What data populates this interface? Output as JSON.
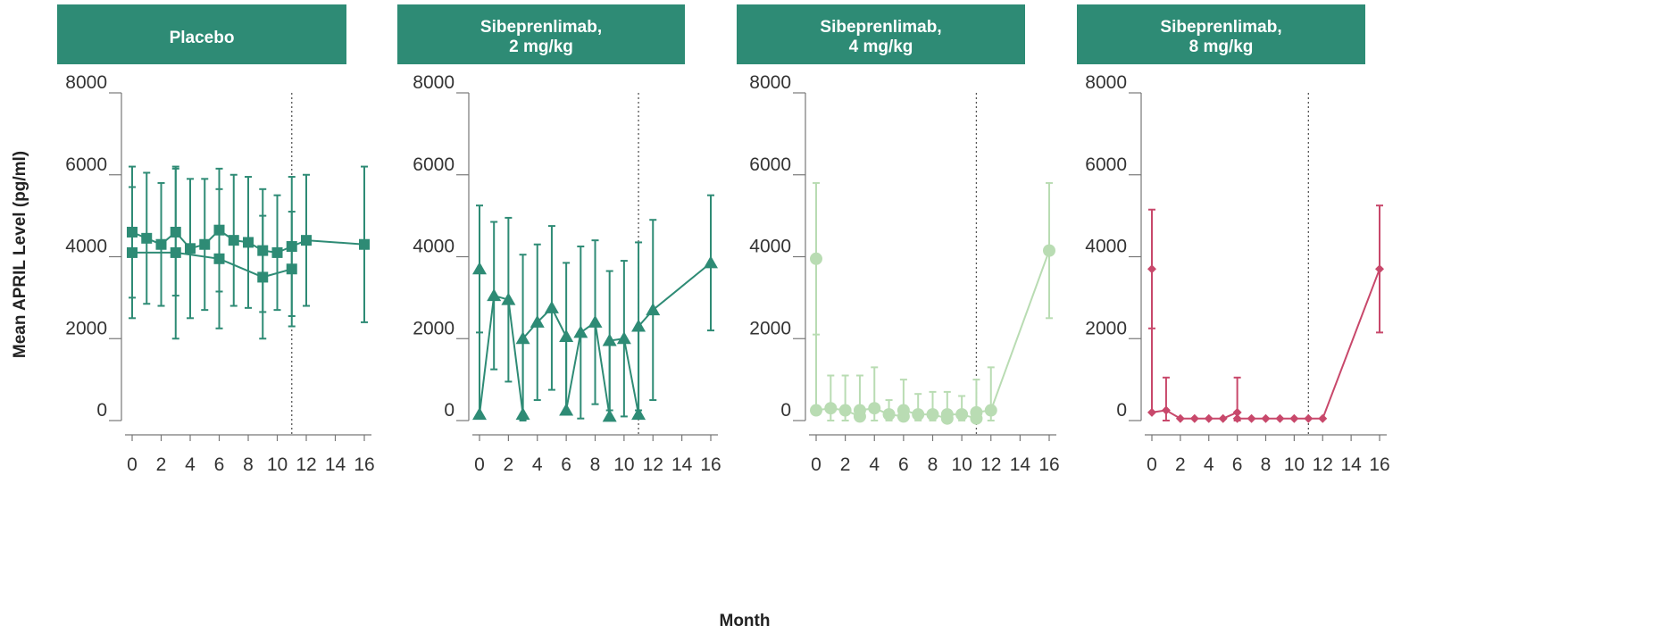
{
  "chart_data": {
    "type": "line",
    "ylabel": "Mean APRIL Level (pg/ml)",
    "xlabel": "Month",
    "ylim": [
      0,
      8000
    ],
    "yticks": [
      0,
      2000,
      4000,
      6000,
      8000
    ],
    "xlim": [
      0,
      16
    ],
    "xticks": [
      0,
      2,
      4,
      6,
      8,
      10,
      12,
      14,
      16
    ],
    "reference_line_x": 11,
    "header_color": "#2e8b75",
    "panels": [
      {
        "title_lines": [
          "Placebo"
        ],
        "marker": "square",
        "color": "#2e8b75",
        "series": [
          {
            "x": [
              0,
              1,
              2,
              3,
              4,
              5,
              6,
              7,
              8,
              9,
              10,
              11,
              12,
              16
            ],
            "y": [
              4600,
              4450,
              4300,
              4600,
              4200,
              4300,
              4650,
              4400,
              4350,
              4150,
              4100,
              4250,
              4400,
              4300
            ],
            "err": [
              1600,
              1600,
              1500,
              1550,
              1700,
              1600,
              1500,
              1600,
              1600,
              1500,
              1400,
              1700,
              1600,
              1900
            ]
          },
          {
            "x": [
              0,
              3,
              6,
              9,
              11
            ],
            "y": [
              4100,
              4100,
              3950,
              3500,
              3700
            ],
            "err": [
              1600,
              2100,
              1700,
              1500,
              1400
            ]
          }
        ]
      },
      {
        "title_lines": [
          "Sibeprenlimab,",
          "2 mg/kg"
        ],
        "marker": "triangle",
        "color": "#2e8b75",
        "series": [
          {
            "x": [
              0,
              0,
              1,
              2,
              3,
              3,
              4,
              5,
              6,
              6,
              7,
              8,
              9,
              9,
              10,
              11,
              11,
              12,
              16
            ],
            "y": [
              3700,
              150,
              3050,
              2950,
              150,
              2000,
              2400,
              2750,
              2050,
              250,
              2150,
              2400,
              100,
              1950,
              2000,
              150,
              2300,
              2700,
              3850
            ],
            "err": [
              1550,
              0,
              1800,
              2000,
              0,
              2050,
              1900,
              2000,
              1800,
              0,
              2100,
              2000,
              0,
              1700,
              1900,
              0,
              2050,
              2200,
              1650
            ]
          }
        ]
      },
      {
        "title_lines": [
          "Sibeprenlimab,",
          "4 mg/kg"
        ],
        "marker": "circle",
        "color": "#b9dcb3",
        "series": [
          {
            "x": [
              0,
              0,
              1,
              2,
              3,
              3,
              4,
              5,
              6,
              6,
              7,
              8,
              9,
              9,
              10,
              11,
              11,
              12,
              16
            ],
            "y": [
              3950,
              250,
              300,
              250,
              100,
              250,
              300,
              150,
              100,
              250,
              150,
              150,
              50,
              150,
              150,
              50,
              200,
              250,
              4150
            ],
            "err": [
              1850,
              0,
              800,
              850,
              0,
              850,
              1000,
              350,
              0,
              750,
              500,
              550,
              0,
              550,
              450,
              0,
              800,
              1050,
              1650
            ]
          }
        ]
      },
      {
        "title_lines": [
          "Sibeprenlimab,",
          "8 mg/kg"
        ],
        "marker": "diamond",
        "color": "#c8486b",
        "series": [
          {
            "x": [
              0,
              0,
              1,
              2,
              3,
              4,
              5,
              6,
              6,
              7,
              8,
              9,
              10,
              11,
              12,
              16
            ],
            "y": [
              3700,
              200,
              250,
              50,
              50,
              50,
              50,
              200,
              50,
              50,
              50,
              50,
              50,
              50,
              50,
              3700
            ],
            "err": [
              1450,
              0,
              800,
              0,
              0,
              0,
              0,
              850,
              0,
              0,
              0,
              0,
              0,
              0,
              0,
              1550
            ]
          }
        ]
      }
    ]
  }
}
